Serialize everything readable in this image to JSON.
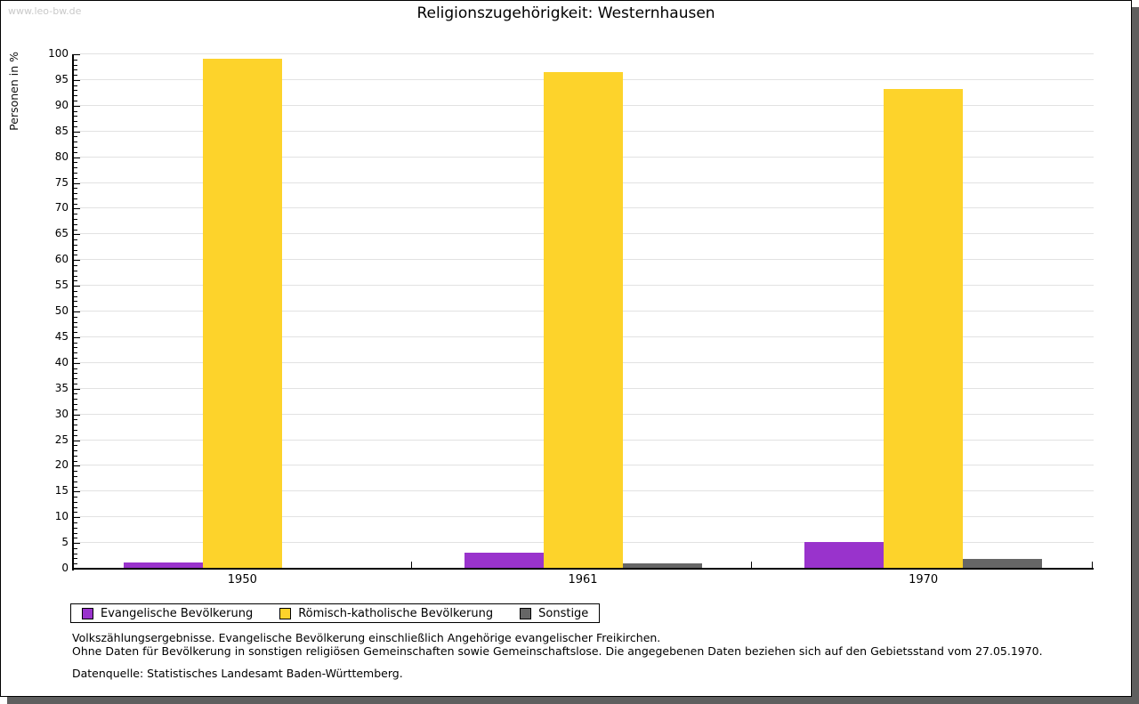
{
  "watermark": "www.leo-bw.de",
  "title": "Religionszugehörigkeit: Westernhausen",
  "chart_data": {
    "type": "bar",
    "title": "Religionszugehörigkeit: Westernhausen",
    "categories": [
      "1950",
      "1961",
      "1970"
    ],
    "series": [
      {
        "name": "Evangelische Bevölkerung",
        "color": "#9933cc",
        "values": [
          1.0,
          2.9,
          5.1
        ]
      },
      {
        "name": "Römisch-katholische Bevölkerung",
        "color": "#fdd32b",
        "values": [
          99.0,
          96.3,
          93.1
        ]
      },
      {
        "name": "Sonstige",
        "color": "#666666",
        "values": [
          0.0,
          0.8,
          1.7
        ]
      }
    ],
    "xlabel": "",
    "ylabel": "Personen in %",
    "ylim": [
      0,
      100
    ],
    "ytick_step": 5,
    "ytick_minor_step": 1,
    "grid": true,
    "legend_position": "bottom"
  },
  "footnotes": [
    "Volkszählungsergebnisse. Evangelische Bevölkerung einschließlich Angehörige evangelischer Freikirchen.",
    "Ohne Daten für Bevölkerung in sonstigen religiösen Gemeinschaften sowie Gemeinschaftslose. Die angegebenen Daten beziehen sich auf den Gebietsstand vom 27.05.1970."
  ],
  "source": "Datenquelle: Statistisches Landesamt Baden-Württemberg."
}
